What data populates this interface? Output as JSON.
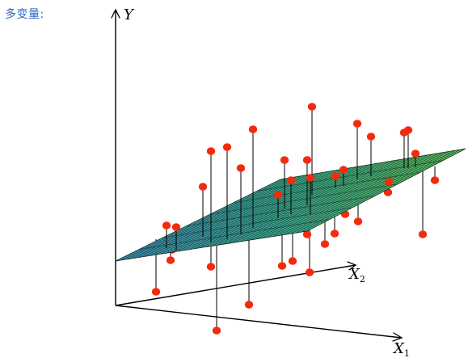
{
  "title": "多变量:",
  "axes": {
    "y": {
      "letter": "Y",
      "subscript": ""
    },
    "x2": {
      "letter": "X",
      "subscript": "2"
    },
    "x1": {
      "letter": "X",
      "subscript": "1"
    }
  },
  "colors": {
    "title": "#2a63c8",
    "point": "#f52a0c",
    "plane_low": "#3d86b8",
    "plane_mid": "#3aa091",
    "plane_high": "#5bb858",
    "mesh": "#0d2b18",
    "axis": "#000000"
  },
  "icons": {
    "axis_arrow": "open-arrow-icon",
    "observation": "red-dot-icon"
  }
}
